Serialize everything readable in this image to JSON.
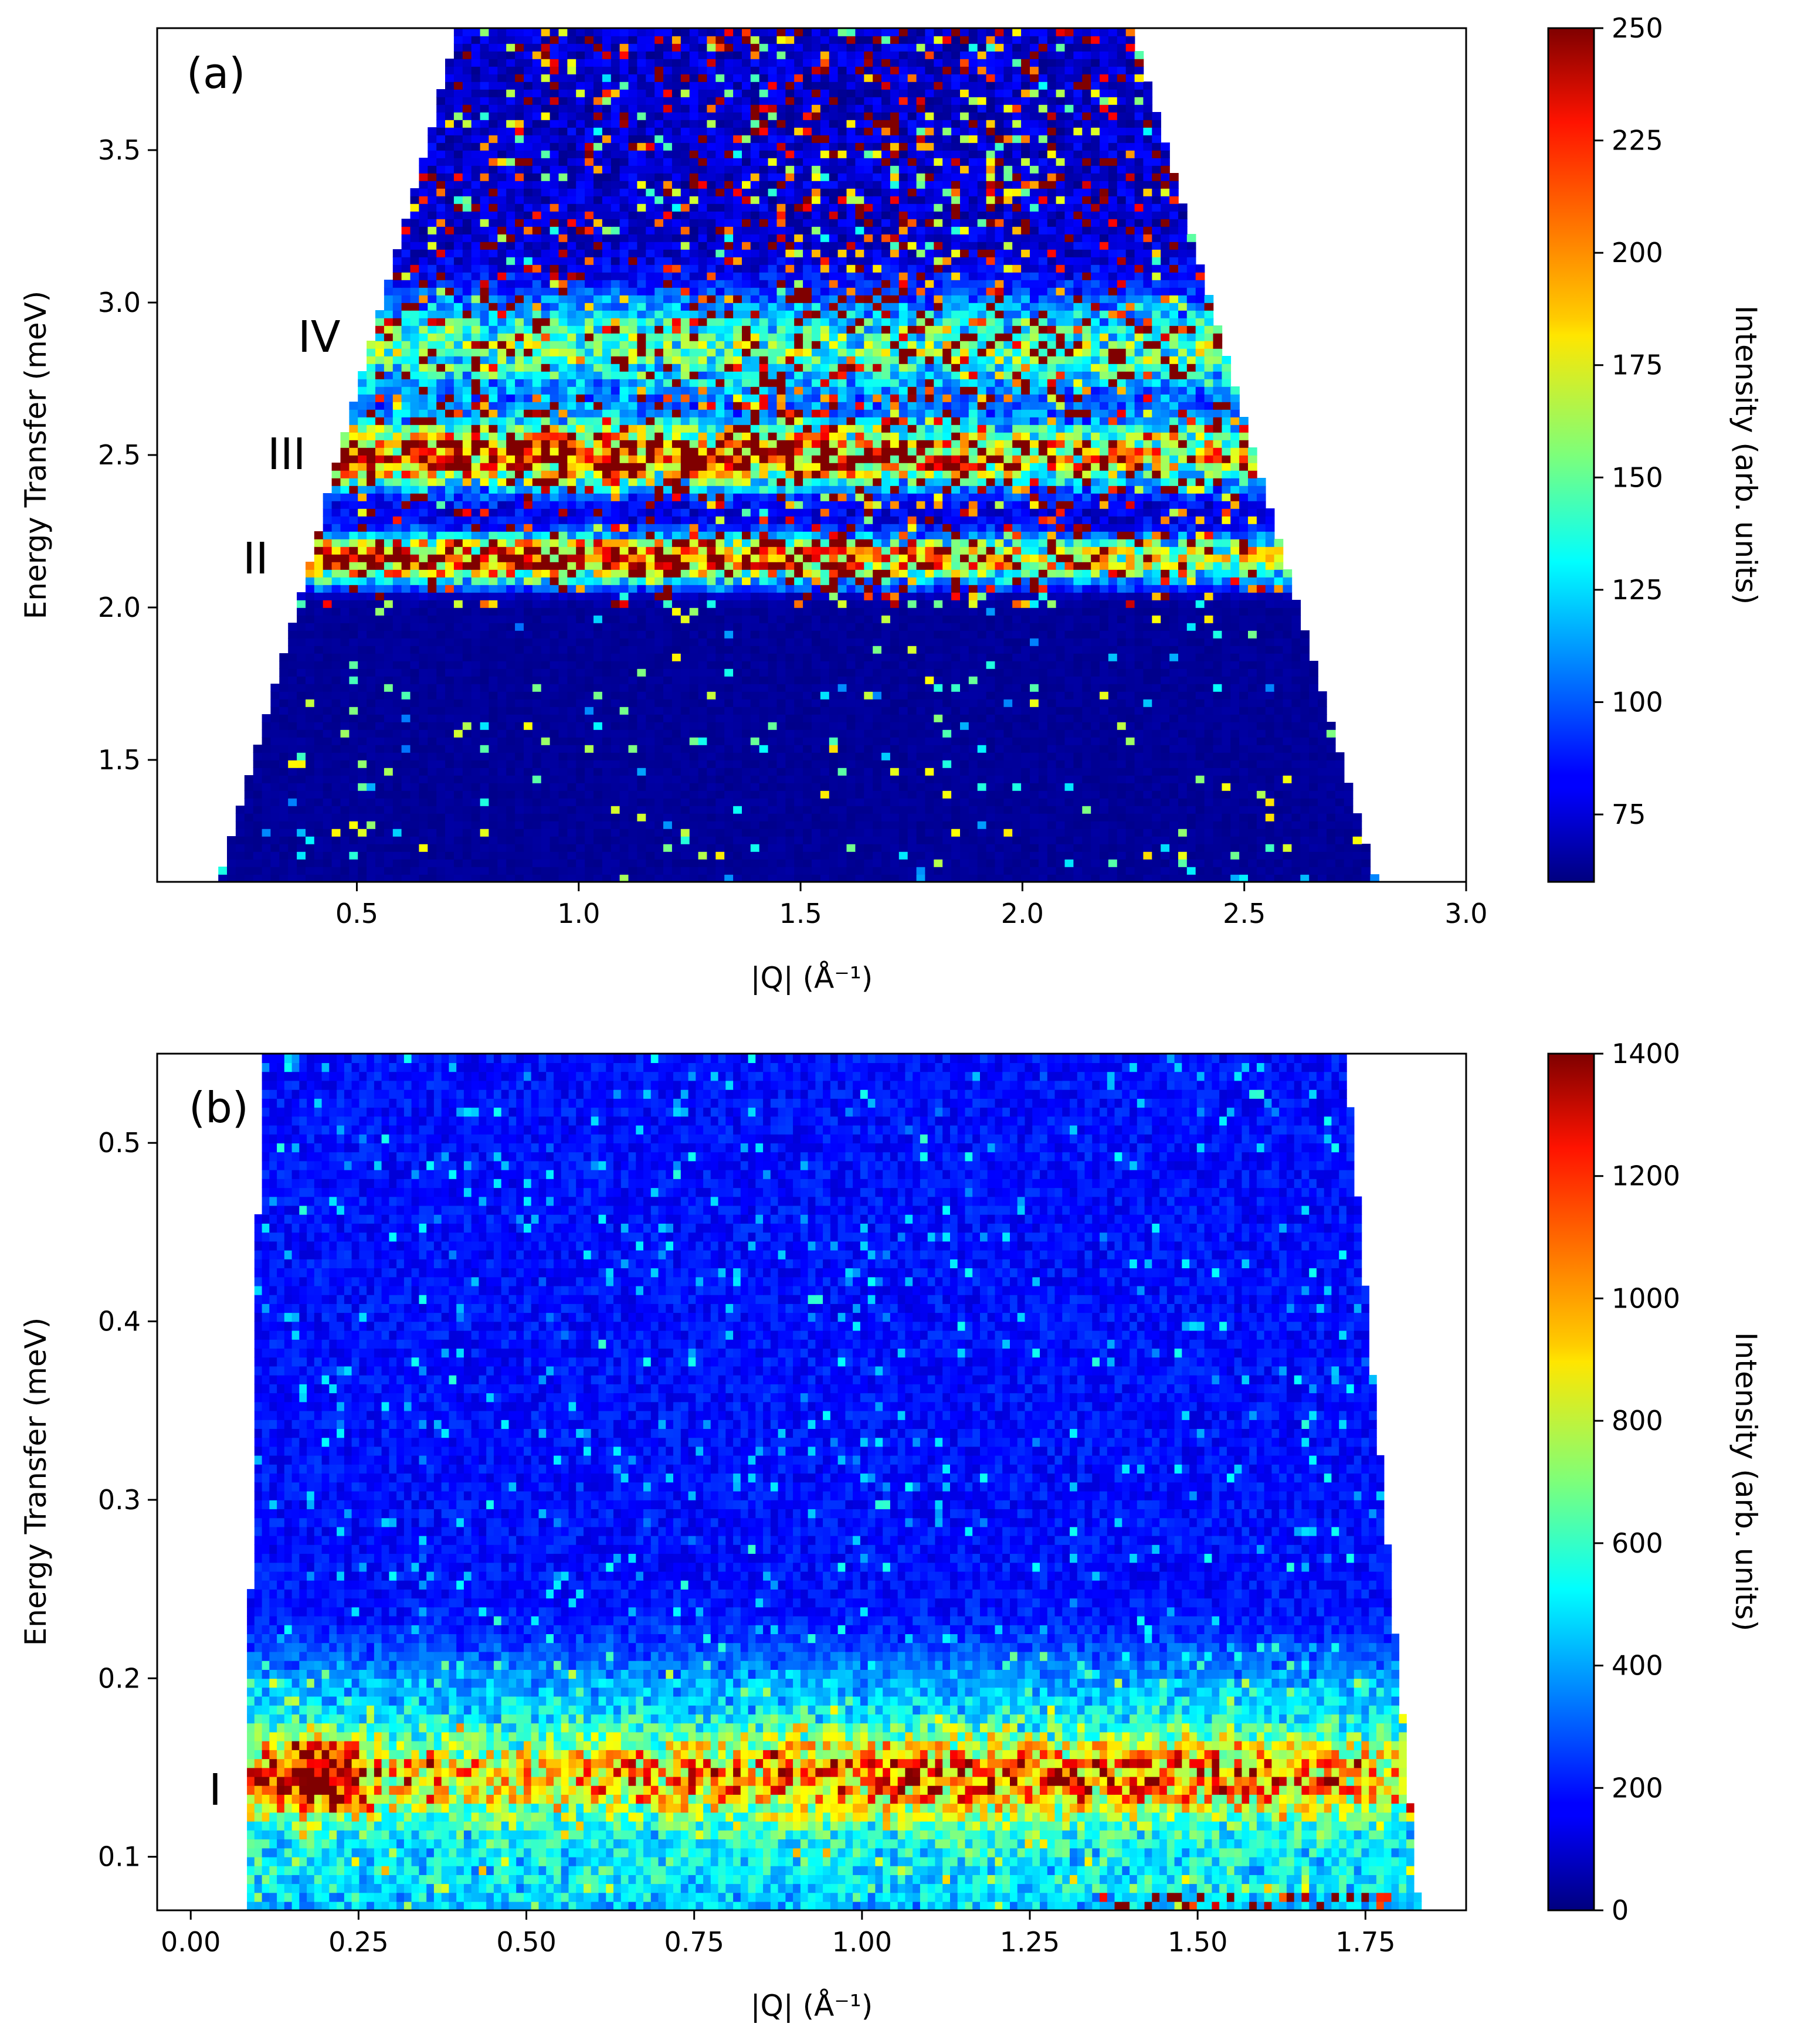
{
  "chart_data": [
    {
      "type": "heatmap",
      "panel_label": "(a)",
      "xlabel": "|Q| (Å⁻¹)",
      "ylabel": "Energy Transfer (meV)",
      "colorbar_label": "Intensity (arb. units)",
      "colormap": "jet",
      "xlim": [
        0.05,
        3.0
      ],
      "ylim": [
        1.1,
        3.9
      ],
      "color_range": [
        60,
        250
      ],
      "x_ticks": [
        "0.5",
        "1.0",
        "1.5",
        "2.0",
        "2.5",
        "3.0"
      ],
      "y_ticks": [
        "1.5",
        "2.0",
        "2.5",
        "3.0",
        "3.5"
      ],
      "colorbar_ticks": [
        "75",
        "100",
        "125",
        "150",
        "175",
        "200",
        "225",
        "250"
      ],
      "coverage": {
        "x_min_at_bottom": 0.19,
        "x_min_at_top": 0.73,
        "x_max_at_bottom": 2.8,
        "x_max_at_top": 2.25
      },
      "bands": [
        {
          "label": "II",
          "energy": 2.15,
          "peak_intensity": 250
        },
        {
          "label": "III",
          "energy": 2.5,
          "peak_intensity": 250
        },
        {
          "label": "IV",
          "energy": 2.85,
          "peak_intensity": 180
        }
      ]
    },
    {
      "type": "heatmap",
      "panel_label": "(b)",
      "xlabel": "|Q| (Å⁻¹)",
      "ylabel": "Energy Transfer (meV)",
      "colorbar_label": "Intensity (arb. units)",
      "colormap": "jet",
      "xlim": [
        -0.05,
        1.9
      ],
      "ylim": [
        0.07,
        0.55
      ],
      "color_range": [
        0,
        1400
      ],
      "x_ticks": [
        "0.00",
        "0.25",
        "0.50",
        "0.75",
        "1.00",
        "1.25",
        "1.50",
        "1.75"
      ],
      "y_ticks": [
        "0.1",
        "0.2",
        "0.3",
        "0.4",
        "0.5"
      ],
      "colorbar_ticks": [
        "0",
        "200",
        "400",
        "600",
        "800",
        "1000",
        "1200",
        "1400"
      ],
      "coverage": {
        "x_min_at_bottom": 0.08,
        "x_min_at_top": 0.105,
        "x_max_at_bottom": 1.83,
        "x_max_at_top": 1.72
      },
      "bands": [
        {
          "label": "I",
          "energy": 0.145,
          "peak_intensity": 1400
        }
      ]
    }
  ]
}
